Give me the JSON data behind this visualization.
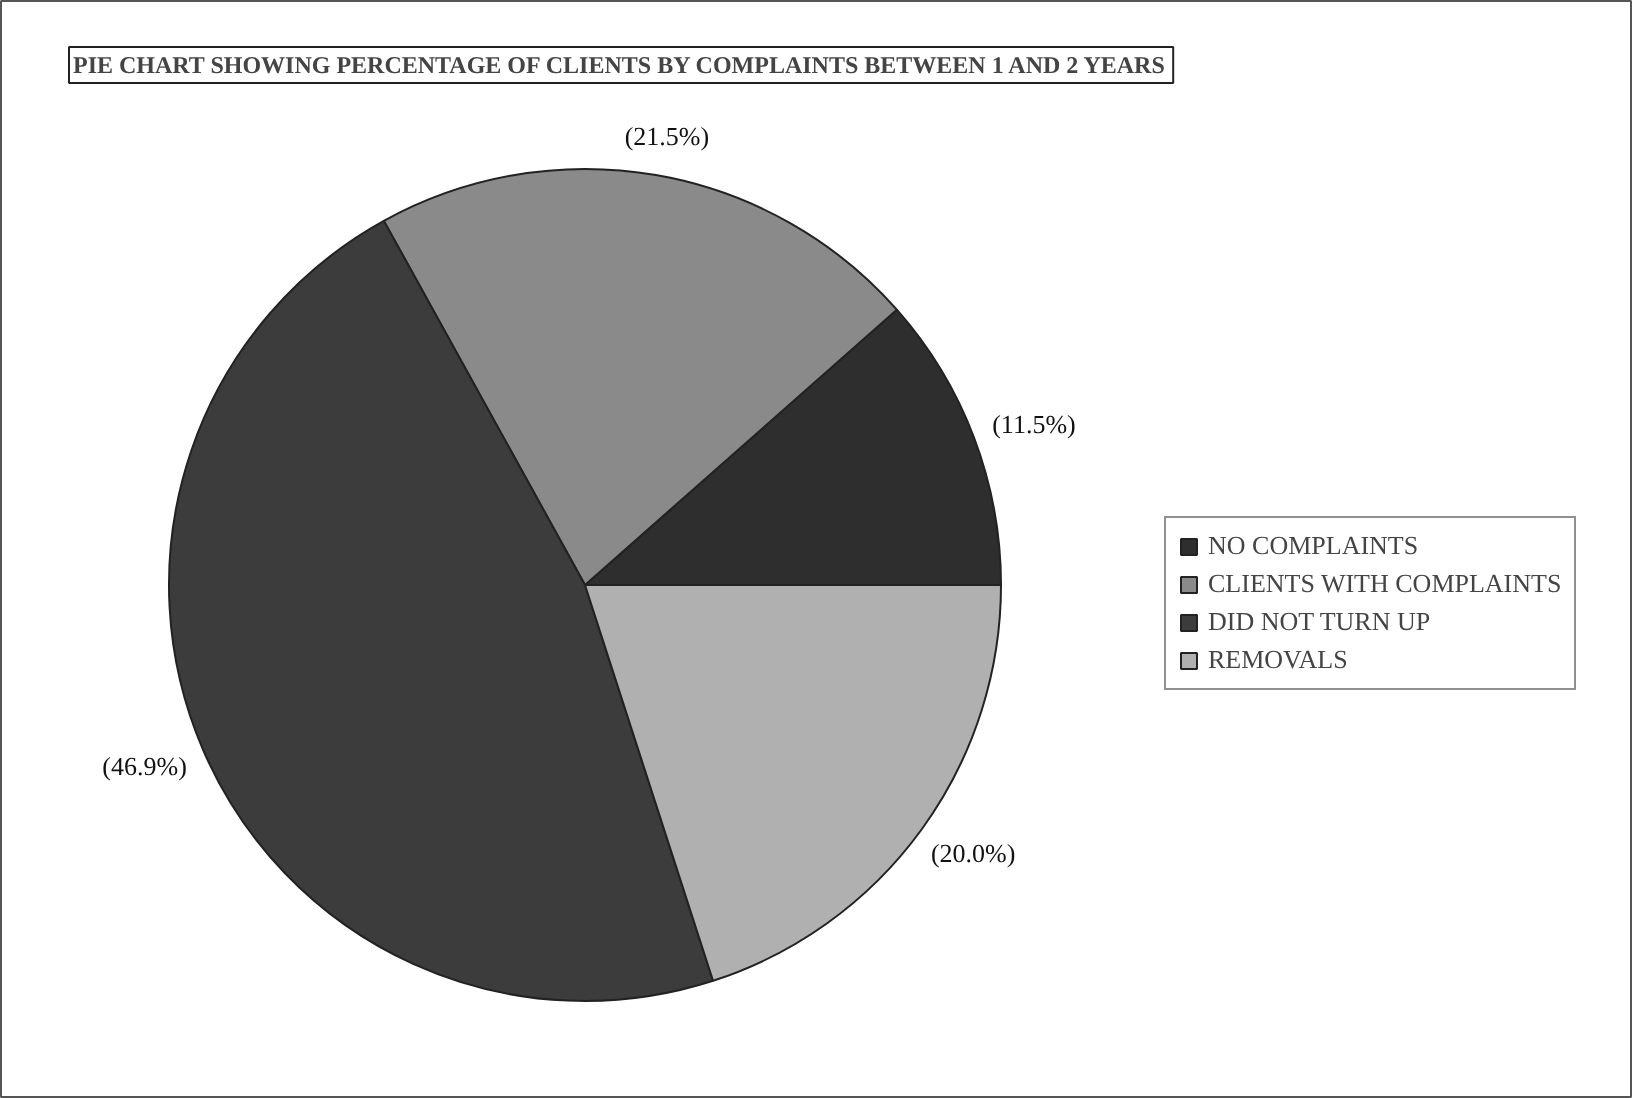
{
  "chart_data": {
    "type": "pie",
    "title": "PIE CHART SHOWING PERCENTAGE OF CLIENTS BY COMPLAINTS BETWEEN 1 AND 2 YEARS",
    "categories": [
      "NO COMPLAINTS",
      "CLIENTS WITH COMPLAINTS",
      "DID NOT TURN UP",
      "REMOVALS"
    ],
    "values": [
      11.5,
      21.5,
      46.9,
      20.0
    ],
    "value_labels": [
      "(11.5%)",
      "(21.5%)",
      "(46.9%)",
      "(20.0%)"
    ],
    "colors": [
      "#2e2e2e",
      "#8a8a8a",
      "#3c3c3c",
      "#b0b0b0"
    ],
    "legend": "right"
  }
}
